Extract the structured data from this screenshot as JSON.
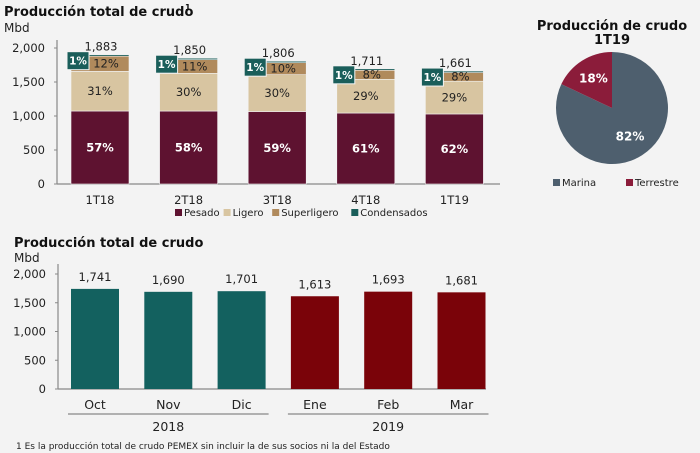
{
  "footnote": "1   Es la producción total de crudo PEMEX sin incluir la de sus socios ni la del Estado",
  "chart_data": [
    {
      "type": "bar",
      "stacked": true,
      "title": "Producción total de crudo",
      "title_superscript": "1",
      "ylabel": "Mbd",
      "ylim": [
        0,
        2000
      ],
      "yticks": [
        "0",
        "500",
        "1,000",
        "1,500",
        "2,000"
      ],
      "categories": [
        "1T18",
        "2T18",
        "3T18",
        "4T18",
        "1T19"
      ],
      "totals": [
        1883,
        1850,
        1806,
        1711,
        1661
      ],
      "total_labels": [
        "1,883",
        "1,850",
        "1,806",
        "1,711",
        "1,661"
      ],
      "series": [
        {
          "name": "Pesado",
          "color": "#5e1230",
          "values_pct": [
            57,
            58,
            59,
            61,
            62
          ],
          "labels": [
            "57%",
            "58%",
            "59%",
            "61%",
            "62%"
          ]
        },
        {
          "name": "Ligero",
          "color": "#d8c5a1",
          "values_pct": [
            31,
            30,
            30,
            29,
            29
          ],
          "labels": [
            "31%",
            "30%",
            "30%",
            "29%",
            "29%"
          ]
        },
        {
          "name": "Superligero",
          "color": "#b08a5c",
          "values_pct": [
            12,
            11,
            10,
            8,
            8
          ],
          "labels": [
            "12%",
            "11%",
            "10%",
            "8%",
            "8%"
          ]
        },
        {
          "name": "Condensados",
          "color": "#1a5e5a",
          "values_pct": [
            1,
            1,
            1,
            1,
            1
          ],
          "labels": [
            "1%",
            "1%",
            "1%",
            "1%",
            "1%"
          ]
        }
      ],
      "legend": "bottom"
    },
    {
      "type": "pie",
      "title": "Producción de crudo",
      "subtitle": "1T19",
      "slices": [
        {
          "name": "Marina",
          "value": 82,
          "label": "82%",
          "color": "#4e5f6e"
        },
        {
          "name": "Terrestre",
          "value": 18,
          "label": "18%",
          "color": "#8b1c3a"
        }
      ],
      "legend": "bottom"
    },
    {
      "type": "bar",
      "title": "Producción total de crudo",
      "ylabel": "Mbd",
      "ylim": [
        0,
        2000
      ],
      "yticks": [
        "0",
        "500",
        "1,000",
        "1,500",
        "2,000"
      ],
      "categories": [
        "Oct",
        "Nov",
        "Dic",
        "Ene",
        "Feb",
        "Mar"
      ],
      "values": [
        1741,
        1690,
        1701,
        1613,
        1693,
        1681
      ],
      "value_labels": [
        "1,741",
        "1,690",
        "1,701",
        "1,613",
        "1,693",
        "1,681"
      ],
      "colors": [
        "#13615f",
        "#13615f",
        "#13615f",
        "#7a0309",
        "#7a0309",
        "#7a0309"
      ],
      "groups": [
        {
          "label": "2018",
          "categories": [
            "Oct",
            "Nov",
            "Dic"
          ]
        },
        {
          "label": "2019",
          "categories": [
            "Ene",
            "Feb",
            "Mar"
          ]
        }
      ]
    }
  ]
}
